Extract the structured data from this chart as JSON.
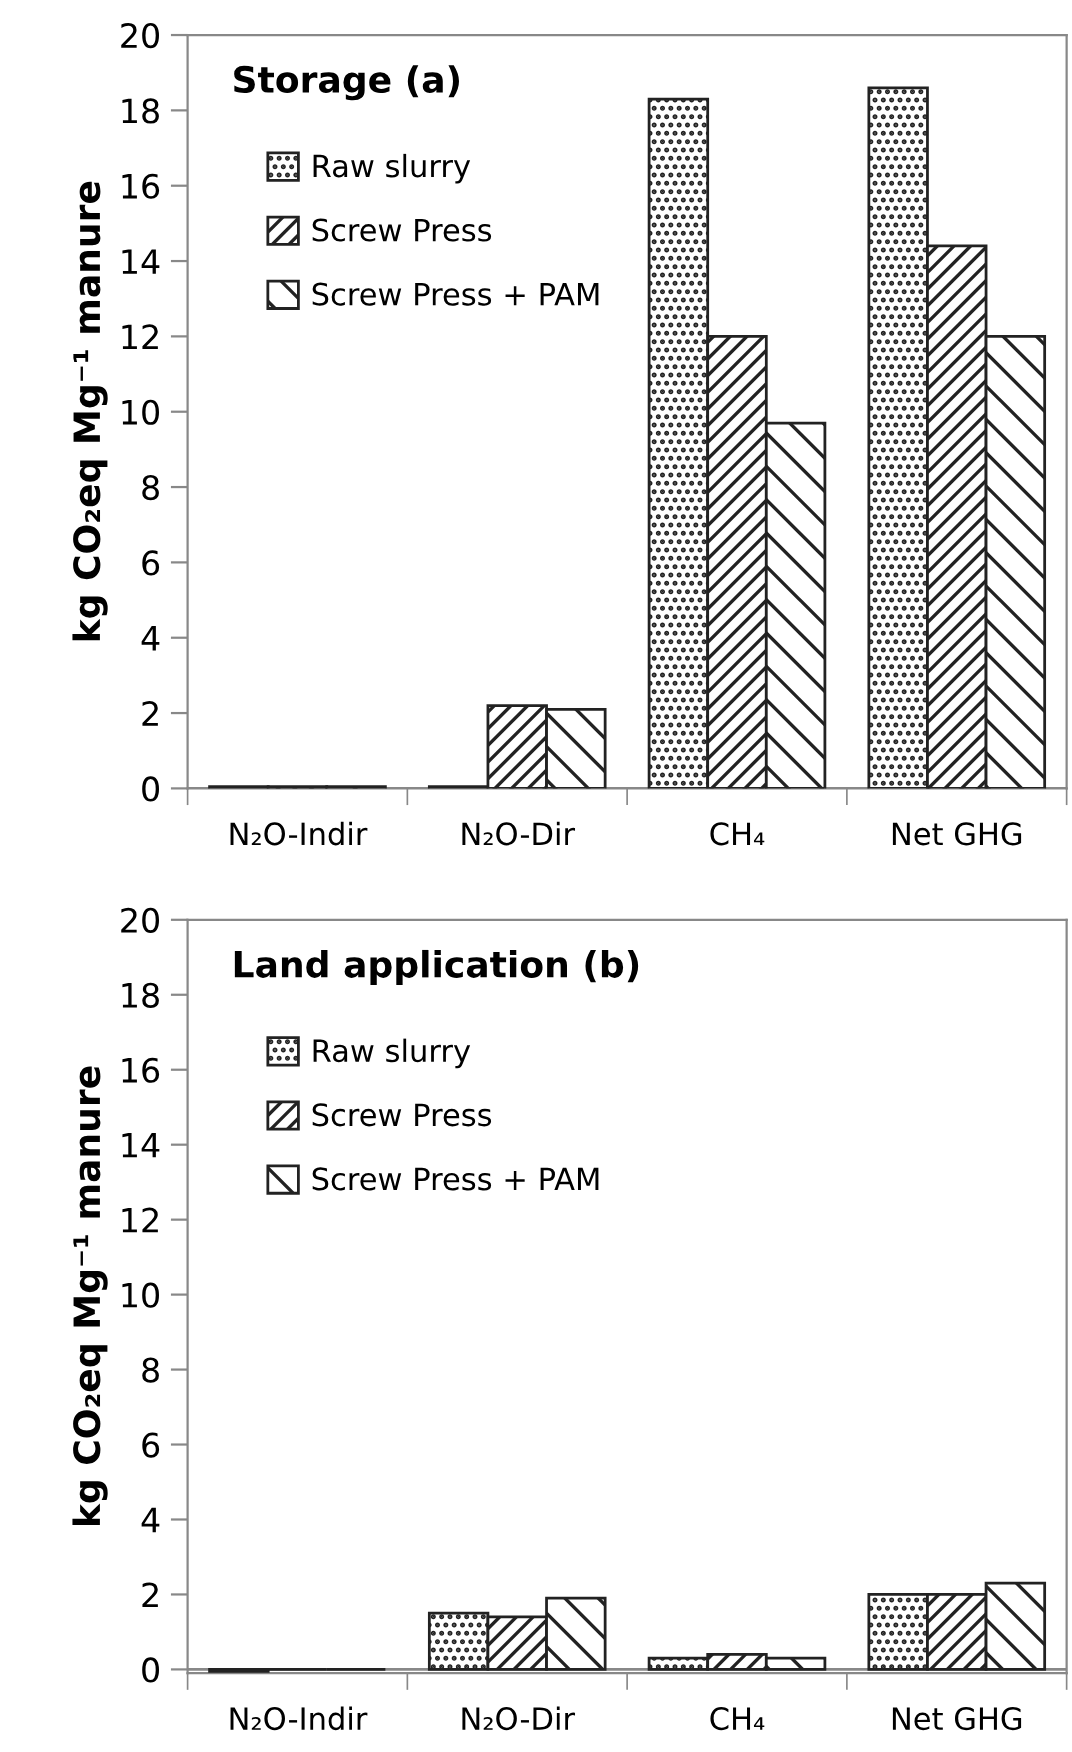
{
  "chart_data": [
    {
      "type": "bar",
      "title": "Storage (a)",
      "ylabel": "kg CO₂eq Mg⁻¹ manure",
      "categories": [
        "N₂O-Indir",
        "N₂O-Dir",
        "CH₄",
        "Net GHG"
      ],
      "series": [
        {
          "name": "Raw slurry",
          "color": "#222222",
          "values": [
            0.05,
            0.05,
            18.3,
            18.6
          ]
        },
        {
          "name": "Screw Press",
          "color": "#222222",
          "values": [
            0.05,
            2.2,
            12.0,
            14.4
          ]
        },
        {
          "name": "Screw Press + PAM",
          "color": "#222222",
          "values": [
            0.05,
            2.1,
            9.7,
            12.0
          ]
        }
      ],
      "ylim": [
        0,
        20
      ],
      "yticks": [
        0,
        2,
        4,
        6,
        8,
        10,
        12,
        14,
        16,
        18,
        20
      ],
      "grid": false,
      "legend": "top left"
    },
    {
      "type": "bar",
      "title": "Land application (b)",
      "ylabel": "kg CO₂eq Mg⁻¹ manure",
      "categories": [
        "N₂O-Indir",
        "N₂O-Dir",
        "CH₄",
        "Net GHG"
      ],
      "series": [
        {
          "name": "Raw slurry",
          "color": "#222222",
          "values": [
            -0.05,
            1.5,
            0.3,
            2.0
          ]
        },
        {
          "name": "Screw Press",
          "color": "#222222",
          "values": [
            0,
            1.4,
            0.4,
            2.0
          ]
        },
        {
          "name": "Screw Press + PAM",
          "color": "#222222",
          "values": [
            0,
            1.9,
            0.3,
            2.3
          ]
        }
      ],
      "ylim": [
        -0.1,
        20
      ],
      "yticks": [
        0,
        2,
        4,
        6,
        8,
        10,
        12,
        14,
        16,
        18,
        20
      ],
      "grid": false,
      "legend": "top left"
    }
  ]
}
